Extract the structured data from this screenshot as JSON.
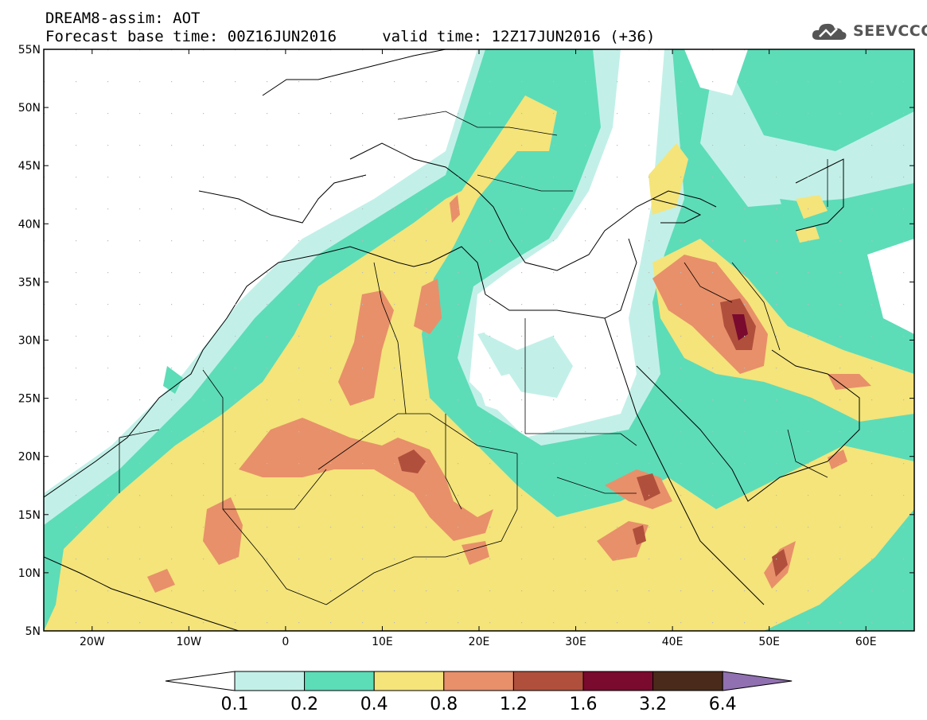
{
  "header": {
    "title_line1": "DREAM8-assim: AOT",
    "title_line2": "Forecast base time: 00Z16JUN2016     valid time: 12Z17JUN2016 (+36)"
  },
  "logo": {
    "text": "SEEVCCC",
    "icon": "cloud-icon"
  },
  "map": {
    "lon_range": [
      -25,
      65
    ],
    "lat_range": [
      5,
      55
    ],
    "lat_labels": [
      "55N",
      "50N",
      "45N",
      "40N",
      "35N",
      "30N",
      "25N",
      "20N",
      "15N",
      "10N",
      "5N"
    ],
    "lon_labels": [
      "20W",
      "10W",
      "0",
      "10E",
      "20E",
      "30E",
      "40E",
      "50E",
      "60E"
    ]
  },
  "colorbar": {
    "levels": [
      "0.1",
      "0.2",
      "0.4",
      "0.8",
      "1.2",
      "1.6",
      "3.2",
      "6.4"
    ],
    "colors": [
      "#c2f0e8",
      "#5ddcb8",
      "#f4e47a",
      "#e8906a",
      "#b0503c",
      "#7a0a2e",
      "#4a2a1a",
      "#9070b0"
    ],
    "under_color": "#ffffff"
  }
}
